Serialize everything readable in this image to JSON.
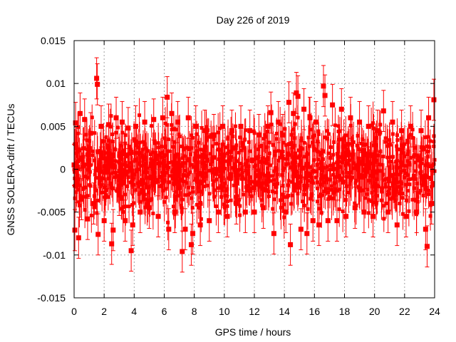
{
  "chart_data": {
    "type": "scatter",
    "title": "Day 226 of 2019",
    "xlabel": "GPS time / hours",
    "ylabel": "GNSS SOLERA-drift / TECUs",
    "xlim": [
      0,
      24
    ],
    "ylim": [
      -0.015,
      0.015
    ],
    "xticks": [
      0,
      2,
      4,
      6,
      8,
      10,
      12,
      14,
      16,
      18,
      20,
      22,
      24
    ],
    "yticks": [
      -0.015,
      -0.01,
      -0.005,
      0,
      0.005,
      0.01,
      0.015
    ],
    "ytick_labels": [
      "-0.015",
      "-0.01",
      "-0.005",
      "0",
      "0.005",
      "0.01",
      "0.015"
    ],
    "grid": true,
    "series_color": "#ff0000",
    "marker": "square",
    "error_bars": true,
    "typical_error": 0.002,
    "series": [
      {
        "points": [
          [
            0.0,
            0.0005
          ],
          [
            0.05,
            -0.0071
          ],
          [
            0.1,
            0.0054
          ],
          [
            0.15,
            0.0025
          ],
          [
            0.2,
            -0.0015
          ],
          [
            0.3,
            -0.008
          ],
          [
            0.4,
            0.0065
          ],
          [
            0.5,
            -0.0035
          ],
          [
            0.7,
            0.0058
          ],
          [
            0.9,
            -0.0058
          ],
          [
            1.1,
            0.0042
          ],
          [
            1.3,
            -0.004
          ],
          [
            1.5,
            0.0106
          ],
          [
            1.55,
            0.0099
          ],
          [
            1.6,
            -0.0076
          ],
          [
            1.8,
            0.005
          ],
          [
            2.0,
            -0.006
          ],
          [
            2.3,
            0.0052
          ],
          [
            2.5,
            -0.0087
          ],
          [
            2.6,
            -0.0071
          ],
          [
            2.8,
            0.006
          ],
          [
            3.0,
            -0.003
          ],
          [
            3.2,
            0.0055
          ],
          [
            3.4,
            -0.006
          ],
          [
            3.6,
            0.0048
          ],
          [
            3.8,
            -0.0095
          ],
          [
            3.9,
            -0.0065
          ],
          [
            4.1,
            0.005
          ],
          [
            4.4,
            -0.005
          ],
          [
            4.7,
            0.0055
          ],
          [
            5.0,
            -0.0045
          ],
          [
            5.3,
            0.0058
          ],
          [
            5.6,
            -0.0055
          ],
          [
            5.9,
            0.006
          ],
          [
            6.2,
            0.0084
          ],
          [
            6.3,
            -0.007
          ],
          [
            6.5,
            0.0065
          ],
          [
            6.7,
            -0.005
          ],
          [
            6.9,
            0.0055
          ],
          [
            7.2,
            -0.0096
          ],
          [
            7.4,
            -0.007
          ],
          [
            7.6,
            0.006
          ],
          [
            7.8,
            -0.0088
          ],
          [
            7.9,
            -0.0075
          ],
          [
            8.1,
            0.005
          ],
          [
            8.4,
            -0.0065
          ],
          [
            8.7,
            0.0045
          ],
          [
            9.0,
            -0.006
          ],
          [
            9.3,
            0.004
          ],
          [
            9.6,
            -0.005
          ],
          [
            9.9,
            0.005
          ],
          [
            10.2,
            -0.0055
          ],
          [
            10.5,
            0.0045
          ],
          [
            10.8,
            -0.004
          ],
          [
            11.1,
            0.005
          ],
          [
            11.4,
            -0.005
          ],
          [
            11.7,
            0.0045
          ],
          [
            12.0,
            -0.005
          ],
          [
            12.3,
            0.004
          ],
          [
            12.6,
            -0.0045
          ],
          [
            12.9,
            0.005
          ],
          [
            13.1,
            0.0066
          ],
          [
            13.3,
            -0.0075
          ],
          [
            13.6,
            0.0055
          ],
          [
            13.9,
            0.004
          ],
          [
            14.1,
            -0.005
          ],
          [
            14.3,
            0.0078
          ],
          [
            14.4,
            -0.0088
          ],
          [
            14.6,
            0.0065
          ],
          [
            14.8,
            0.0089
          ],
          [
            14.9,
            0.0085
          ],
          [
            15.1,
            -0.007
          ],
          [
            15.3,
            0.007
          ],
          [
            15.5,
            -0.0075
          ],
          [
            15.7,
            0.006
          ],
          [
            15.9,
            -0.006
          ],
          [
            16.1,
            0.0055
          ],
          [
            16.3,
            -0.0065
          ],
          [
            16.6,
            0.0097
          ],
          [
            16.7,
            0.0086
          ],
          [
            16.9,
            -0.006
          ],
          [
            17.2,
            0.0075
          ],
          [
            17.5,
            -0.006
          ],
          [
            17.8,
            0.007
          ],
          [
            18.1,
            -0.0055
          ],
          [
            18.4,
            0.006
          ],
          [
            18.7,
            -0.0045
          ],
          [
            19.0,
            0.0055
          ],
          [
            19.3,
            -0.005
          ],
          [
            19.6,
            0.005
          ],
          [
            19.9,
            -0.0055
          ],
          [
            20.2,
            0.0045
          ],
          [
            20.6,
            0.0068
          ],
          [
            20.9,
            -0.005
          ],
          [
            21.2,
            0.0055
          ],
          [
            21.5,
            -0.0065
          ],
          [
            21.8,
            0.0045
          ],
          [
            22.1,
            -0.0055
          ],
          [
            22.4,
            0.005
          ],
          [
            22.8,
            -0.005
          ],
          [
            23.1,
            0.0045
          ],
          [
            23.4,
            -0.007
          ],
          [
            23.5,
            -0.009
          ],
          [
            23.6,
            0.006
          ],
          [
            23.8,
            -0.004
          ],
          [
            23.95,
            0.0081
          ]
        ]
      }
    ]
  }
}
